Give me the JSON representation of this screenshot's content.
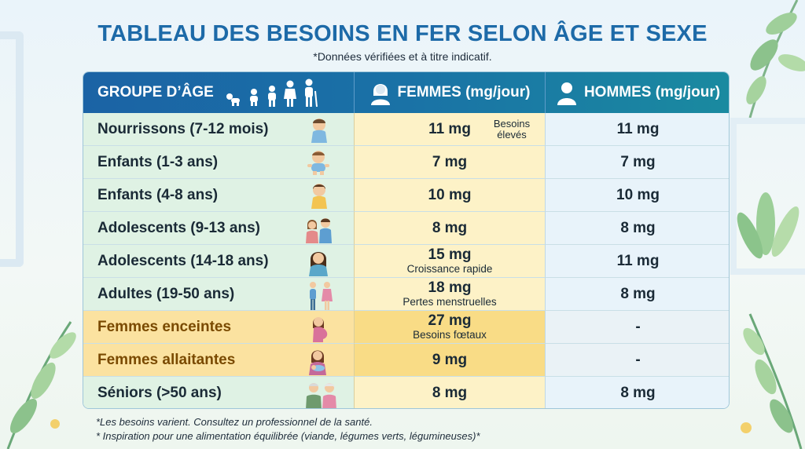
{
  "title": "TABLEAU DES BESOINS EN FER SELON ÂGE ET SEXE",
  "subtitle": "*Données vérifiées et à titre indicatif.",
  "header": {
    "age_group": "GROUPE D’ÂGE",
    "women": "FEMMES (mg/jour)",
    "men": "HOMMES (mg/jour)"
  },
  "rows": [
    {
      "group": "Nourrissons (7-12 mois)",
      "women": "11 mg",
      "women_note": "",
      "side_note": "Besoins élevés",
      "men": "11 mg",
      "icon": "baby-icon"
    },
    {
      "group": "Enfants (1-3 ans)",
      "women": "7 mg",
      "women_note": "",
      "side_note": "",
      "men": "7 mg",
      "icon": "toddler-icon"
    },
    {
      "group": "Enfants (4-8 ans)",
      "women": "10 mg",
      "women_note": "",
      "side_note": "",
      "men": "10 mg",
      "icon": "child-icon"
    },
    {
      "group": "Adolescents (9-13 ans)",
      "women": "8 mg",
      "women_note": "",
      "side_note": "",
      "men": "8 mg",
      "icon": "preteens-icon"
    },
    {
      "group": "Adolescents (14-18 ans)",
      "women": "15 mg",
      "women_note": "Croissance rapide",
      "side_note": "",
      "men": "11 mg",
      "icon": "teen-girl-icon"
    },
    {
      "group": "Adultes (19-50 ans)",
      "women": "18 mg",
      "women_note": "Pertes menstruelles",
      "side_note": "",
      "men": "8 mg",
      "icon": "adults-icon"
    },
    {
      "group": "Femmes enceintes",
      "women": "27 mg",
      "women_note": "Besoins fœtaux",
      "side_note": "",
      "men": "-",
      "icon": "pregnant-woman-icon"
    },
    {
      "group": "Femmes allaitantes",
      "women": "9 mg",
      "women_note": "",
      "side_note": "",
      "men": "-",
      "icon": "nursing-mother-icon"
    },
    {
      "group": "Séniors (>50 ans)",
      "women": "8 mg",
      "women_note": "",
      "side_note": "",
      "men": "8 mg",
      "icon": "seniors-icon"
    }
  ],
  "footer": {
    "line1": "*Les besoins varient. Consultez un professionnel de la santé.",
    "line2": "* Inspiration pour une alimentation équilibrée (viande, légumes verts, légumineuses)*"
  },
  "colors": {
    "title": "#1d6aa8",
    "header_bg": "#1b63a5",
    "age_col": "#dff2e4",
    "women_col": "#fdf2c7",
    "men_col": "#e8f3fa",
    "highlight": "#fbe2a0"
  }
}
